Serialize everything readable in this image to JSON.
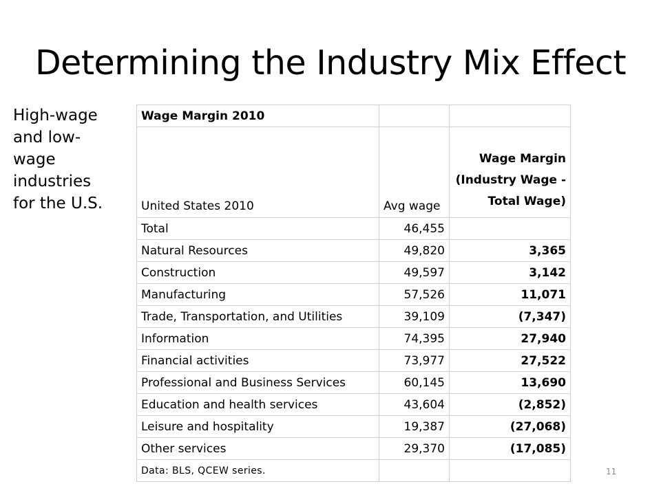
{
  "slide": {
    "title": "Determining the Industry Mix Effect",
    "side_lines": [
      "High-wage",
      "and low-",
      "wage",
      "industries",
      "for the U.S."
    ],
    "page_number": "11"
  },
  "table": {
    "title": "Wage Margin 2010",
    "headers": {
      "region": "United States 2010",
      "avg_wage": "Avg wage",
      "margin_lines": [
        "Wage Margin",
        "(Industry Wage -",
        "Total Wage)"
      ]
    },
    "rows": [
      {
        "industry": "Total",
        "avg_wage": "46,455",
        "margin": ""
      },
      {
        "industry": "Natural Resources",
        "avg_wage": "49,820",
        "margin": "3,365"
      },
      {
        "industry": "Construction",
        "avg_wage": "49,597",
        "margin": "3,142"
      },
      {
        "industry": "Manufacturing",
        "avg_wage": "57,526",
        "margin": "11,071"
      },
      {
        "industry": "Trade, Transportation, and Utilities",
        "avg_wage": "39,109",
        "margin": "(7,347)"
      },
      {
        "industry": "Information",
        "avg_wage": "74,395",
        "margin": "27,940"
      },
      {
        "industry": "Financial activities",
        "avg_wage": "73,977",
        "margin": "27,522"
      },
      {
        "industry": "Professional and Business Services",
        "avg_wage": "60,145",
        "margin": "13,690"
      },
      {
        "industry": "Education and health services",
        "avg_wage": "43,604",
        "margin": "(2,852)"
      },
      {
        "industry": "Leisure and hospitality",
        "avg_wage": "19,387",
        "margin": "(27,068)"
      },
      {
        "industry": "Other services",
        "avg_wage": "29,370",
        "margin": "(17,085)"
      }
    ],
    "note": "Data: BLS, QCEW series."
  }
}
